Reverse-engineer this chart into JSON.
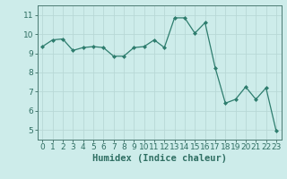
{
  "x": [
    0,
    1,
    2,
    3,
    4,
    5,
    6,
    7,
    8,
    9,
    10,
    11,
    12,
    13,
    14,
    15,
    16,
    17,
    18,
    19,
    20,
    21,
    22,
    23
  ],
  "y": [
    9.35,
    9.7,
    9.75,
    9.15,
    9.3,
    9.35,
    9.3,
    8.85,
    8.85,
    9.3,
    9.35,
    9.7,
    9.3,
    10.85,
    10.85,
    10.05,
    10.6,
    8.25,
    6.4,
    6.6,
    7.25,
    6.6,
    7.2,
    4.95
  ],
  "line_color": "#2e7d6e",
  "marker": "D",
  "marker_size": 2.0,
  "linewidth": 0.9,
  "xlabel": "Humidex (Indice chaleur)",
  "xlim": [
    -0.5,
    23.5
  ],
  "ylim": [
    4.5,
    11.5
  ],
  "yticks": [
    5,
    6,
    7,
    8,
    9,
    10,
    11
  ],
  "xticks": [
    0,
    1,
    2,
    3,
    4,
    5,
    6,
    7,
    8,
    9,
    10,
    11,
    12,
    13,
    14,
    15,
    16,
    17,
    18,
    19,
    20,
    21,
    22,
    23
  ],
  "background_color": "#cdecea",
  "grid_color": "#b8d8d6",
  "axis_color": "#4a7a72",
  "tick_color": "#2e6e62",
  "xlabel_fontsize": 7.5,
  "tick_fontsize": 6.5
}
